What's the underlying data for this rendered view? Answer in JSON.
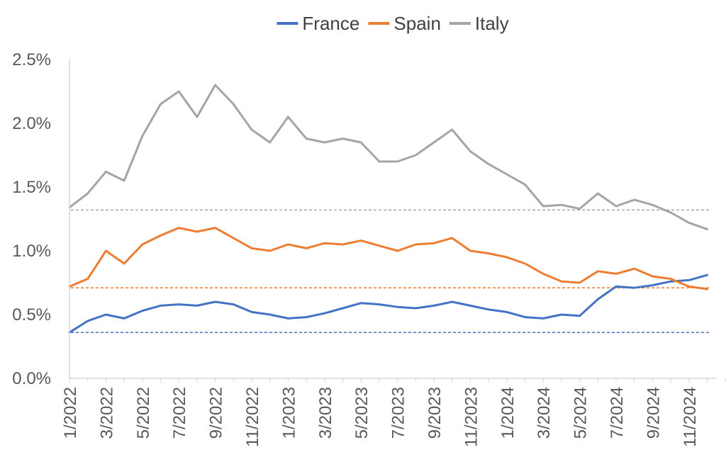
{
  "chart_data": {
    "type": "line",
    "title": "",
    "xlabel": "",
    "ylabel": "",
    "ylim": [
      0,
      2.5
    ],
    "xlim": [
      "2022-01",
      "2024-12"
    ],
    "y_ticks": [
      "0.0%",
      "0.5%",
      "1.0%",
      "1.5%",
      "2.0%",
      "2.5%"
    ],
    "x_ticks": [
      "1/2022",
      "3/2022",
      "5/2022",
      "7/2022",
      "9/2022",
      "11/2022",
      "1/2023",
      "3/2023",
      "5/2023",
      "7/2023",
      "9/2023",
      "11/2023",
      "1/2024",
      "3/2024",
      "5/2024",
      "7/2024",
      "9/2024",
      "11/2024"
    ],
    "legend_position": "top",
    "grid": false,
    "x": [
      "2022-01",
      "2022-02",
      "2022-03",
      "2022-04",
      "2022-05",
      "2022-06",
      "2022-07",
      "2022-08",
      "2022-09",
      "2022-10",
      "2022-11",
      "2022-12",
      "2023-01",
      "2023-02",
      "2023-03",
      "2023-04",
      "2023-05",
      "2023-06",
      "2023-07",
      "2023-08",
      "2023-09",
      "2023-10",
      "2023-11",
      "2023-12",
      "2024-01",
      "2024-02",
      "2024-03",
      "2024-04",
      "2024-05",
      "2024-06",
      "2024-07",
      "2024-08",
      "2024-09",
      "2024-10",
      "2024-11",
      "2024-12"
    ],
    "series": [
      {
        "name": "France",
        "color": "#4472c4",
        "values": [
          0.36,
          0.45,
          0.5,
          0.47,
          0.53,
          0.57,
          0.58,
          0.57,
          0.6,
          0.58,
          0.52,
          0.5,
          0.47,
          0.48,
          0.51,
          0.55,
          0.59,
          0.58,
          0.56,
          0.55,
          0.57,
          0.6,
          0.57,
          0.54,
          0.52,
          0.48,
          0.47,
          0.5,
          0.49,
          0.62,
          0.72,
          0.71,
          0.73,
          0.76,
          0.77,
          0.81
        ],
        "reference": 0.36
      },
      {
        "name": "Spain",
        "color": "#ed7d31",
        "values": [
          0.72,
          0.78,
          1.0,
          0.9,
          1.05,
          1.12,
          1.18,
          1.15,
          1.18,
          1.1,
          1.02,
          1.0,
          1.05,
          1.02,
          1.06,
          1.05,
          1.08,
          1.04,
          1.0,
          1.05,
          1.06,
          1.1,
          1.0,
          0.98,
          0.95,
          0.9,
          0.82,
          0.76,
          0.75,
          0.84,
          0.82,
          0.86,
          0.8,
          0.78,
          0.72,
          0.7
        ],
        "reference": 0.71
      },
      {
        "name": "Italy",
        "color": "#a5a5a5",
        "values": [
          1.34,
          1.45,
          1.62,
          1.55,
          1.9,
          2.15,
          2.25,
          2.05,
          2.3,
          2.15,
          1.95,
          1.85,
          2.05,
          1.88,
          1.85,
          1.88,
          1.85,
          1.7,
          1.7,
          1.75,
          1.85,
          1.95,
          1.78,
          1.68,
          1.6,
          1.52,
          1.35,
          1.36,
          1.33,
          1.45,
          1.35,
          1.4,
          1.36,
          1.3,
          1.22,
          1.17
        ],
        "reference": 1.32
      }
    ]
  }
}
